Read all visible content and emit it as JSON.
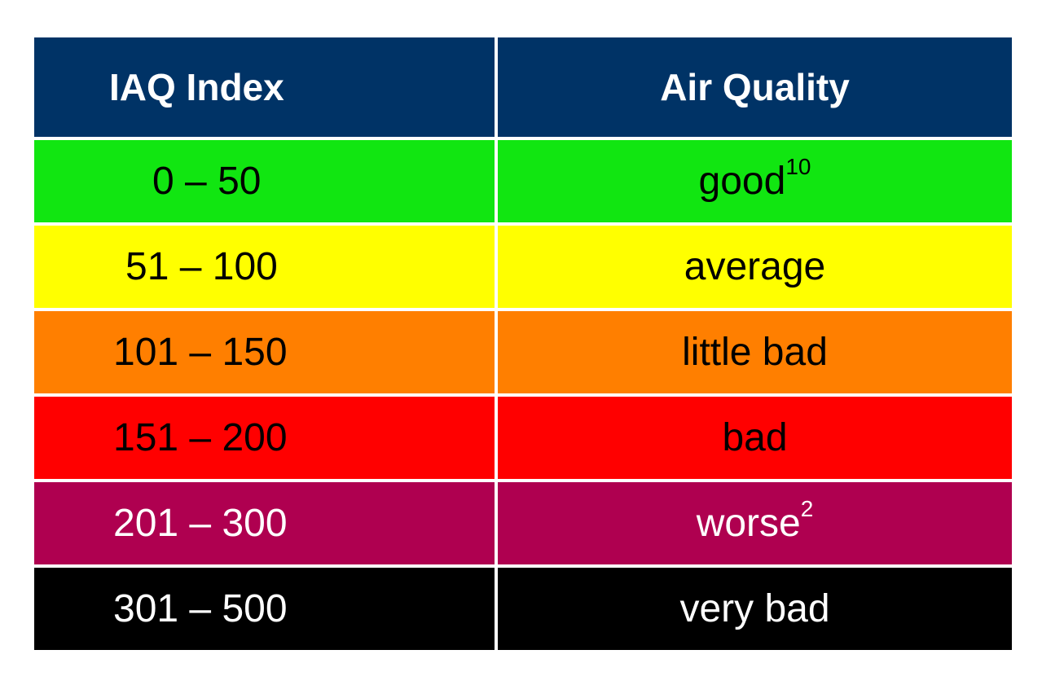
{
  "table": {
    "headers": {
      "index": "IAQ Index",
      "quality": "Air Quality"
    },
    "colors": {
      "header_bg": "#003366",
      "header_text": "#ffffff"
    },
    "rows": [
      {
        "range": "0 – 50",
        "label": "good",
        "sup": "10",
        "bg": "#11E611",
        "text": "#000000"
      },
      {
        "range": "51 – 100",
        "label": "average",
        "sup": "",
        "bg": "#FFFF00",
        "text": "#000000"
      },
      {
        "range": "101 – 150",
        "label": "little bad",
        "sup": "",
        "bg": "#FF7F00",
        "text": "#000000"
      },
      {
        "range": "151 – 200",
        "label": "bad",
        "sup": "",
        "bg": "#FF0000",
        "text": "#000000"
      },
      {
        "range": "201 – 300",
        "label": "worse",
        "sup": "2",
        "bg": "#AF0050",
        "text": "#ffffff"
      },
      {
        "range": "301 – 500",
        "label": "very bad",
        "sup": "",
        "bg": "#000000",
        "text": "#ffffff"
      }
    ]
  }
}
